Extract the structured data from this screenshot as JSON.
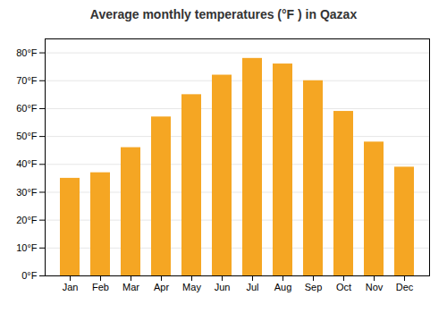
{
  "chart_data": {
    "type": "bar",
    "title": "Average monthly temperatures (°F ) in Qazax",
    "categories": [
      "Jan",
      "Feb",
      "Mar",
      "Apr",
      "May",
      "Jun",
      "Jul",
      "Aug",
      "Sep",
      "Oct",
      "Nov",
      "Dec"
    ],
    "values": [
      35,
      37,
      46,
      57,
      65,
      72,
      78,
      76,
      70,
      59,
      48,
      39
    ],
    "color": "#F5A623",
    "ylim": [
      0,
      85
    ],
    "yticks": [
      {
        "value": 0,
        "label": "0°F"
      },
      {
        "value": 10,
        "label": "10°F"
      },
      {
        "value": 20,
        "label": "20°F"
      },
      {
        "value": 30,
        "label": "30°F"
      },
      {
        "value": 40,
        "label": "40°F"
      },
      {
        "value": 50,
        "label": "50°F"
      },
      {
        "value": 60,
        "label": "60°F"
      },
      {
        "value": 70,
        "label": "70°F"
      },
      {
        "value": 80,
        "label": "80°F"
      }
    ],
    "grid": true
  }
}
